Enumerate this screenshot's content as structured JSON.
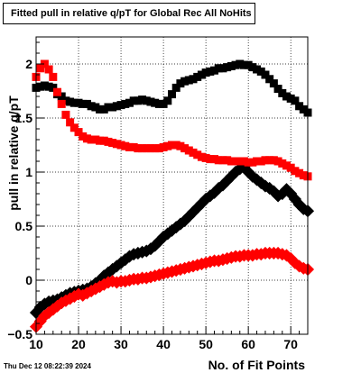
{
  "chart_data": {
    "type": "scatter",
    "title": "Fitted pull in relative q/pT for Global Rec All NoHits",
    "xlabel": "No. of Fit Points",
    "ylabel": "pull in relative q/pT",
    "xlim": [
      10,
      74
    ],
    "ylim": [
      -0.5,
      2.25
    ],
    "x_ticks": [
      10,
      20,
      30,
      40,
      50,
      60,
      70
    ],
    "y_ticks": [
      -0.5,
      0,
      0.5,
      1,
      1.5,
      2
    ],
    "y_tick_labels": [
      "−0.5",
      "0",
      "0.5",
      "1",
      "1.5",
      "2"
    ],
    "grid": true,
    "timestamp": "Thu Dec 12 08:22:39 2024",
    "series": [
      {
        "color": "#000000",
        "marker": "square",
        "x": [
          10,
          11,
          12,
          13,
          14,
          15,
          16,
          17,
          18,
          19,
          20,
          21,
          22,
          23,
          24,
          25,
          26,
          27,
          28,
          29,
          30,
          31,
          32,
          33,
          34,
          35,
          36,
          37,
          38,
          39,
          40,
          41,
          42,
          43,
          44,
          45,
          46,
          47,
          48,
          49,
          50,
          51,
          52,
          53,
          54,
          55,
          56,
          57,
          58,
          59,
          60,
          61,
          62,
          63,
          64,
          65,
          66,
          67,
          68,
          69,
          70,
          71,
          72,
          73,
          74
        ],
        "y": [
          1.78,
          1.79,
          1.8,
          1.79,
          1.78,
          1.72,
          1.7,
          1.66,
          1.65,
          1.64,
          1.64,
          1.63,
          1.63,
          1.61,
          1.6,
          1.58,
          1.58,
          1.6,
          1.6,
          1.61,
          1.62,
          1.63,
          1.64,
          1.66,
          1.66,
          1.67,
          1.66,
          1.65,
          1.64,
          1.63,
          1.63,
          1.66,
          1.72,
          1.78,
          1.82,
          1.84,
          1.85,
          1.86,
          1.88,
          1.9,
          1.92,
          1.93,
          1.94,
          1.96,
          1.96,
          1.97,
          1.98,
          1.99,
          2.0,
          1.99,
          1.99,
          1.97,
          1.95,
          1.93,
          1.9,
          1.86,
          1.82,
          1.77,
          1.73,
          1.7,
          1.68,
          1.66,
          1.61,
          1.58,
          1.55
        ]
      },
      {
        "color": "#000000",
        "marker": "diamond",
        "x": [
          10,
          11,
          12,
          13,
          14,
          15,
          16,
          17,
          18,
          19,
          20,
          21,
          22,
          23,
          24,
          25,
          26,
          27,
          28,
          29,
          30,
          31,
          32,
          33,
          34,
          35,
          36,
          37,
          38,
          39,
          40,
          41,
          42,
          43,
          44,
          45,
          46,
          47,
          48,
          49,
          50,
          51,
          52,
          53,
          54,
          55,
          56,
          57,
          58,
          59,
          60,
          61,
          62,
          63,
          64,
          65,
          66,
          67,
          68,
          69,
          70,
          71,
          72,
          73,
          74
        ],
        "y": [
          -0.3,
          -0.25,
          -0.22,
          -0.2,
          -0.19,
          -0.18,
          -0.16,
          -0.14,
          -0.12,
          -0.11,
          -0.1,
          -0.09,
          -0.08,
          -0.06,
          -0.03,
          0.0,
          0.04,
          0.07,
          0.1,
          0.13,
          0.16,
          0.19,
          0.22,
          0.24,
          0.25,
          0.26,
          0.27,
          0.29,
          0.32,
          0.36,
          0.4,
          0.43,
          0.46,
          0.49,
          0.52,
          0.55,
          0.59,
          0.63,
          0.67,
          0.71,
          0.75,
          0.78,
          0.81,
          0.85,
          0.88,
          0.92,
          0.96,
          1.0,
          1.03,
          1.05,
          1.0,
          0.96,
          0.93,
          0.9,
          0.87,
          0.85,
          0.82,
          0.78,
          0.8,
          0.84,
          0.8,
          0.75,
          0.7,
          0.66,
          0.64
        ]
      },
      {
        "color": "#ff0000",
        "marker": "square",
        "x": [
          10,
          11,
          12,
          13,
          14,
          15,
          16,
          17,
          18,
          19,
          20,
          21,
          22,
          23,
          24,
          25,
          26,
          27,
          28,
          29,
          30,
          31,
          32,
          33,
          34,
          35,
          36,
          37,
          38,
          39,
          40,
          41,
          42,
          43,
          44,
          45,
          46,
          47,
          48,
          49,
          50,
          51,
          52,
          53,
          54,
          55,
          56,
          57,
          58,
          59,
          60,
          61,
          62,
          63,
          64,
          65,
          66,
          67,
          68,
          69,
          70,
          71,
          72,
          73,
          74
        ],
        "y": [
          1.88,
          1.96,
          2.0,
          1.95,
          1.88,
          1.74,
          1.63,
          1.53,
          1.46,
          1.41,
          1.37,
          1.33,
          1.31,
          1.3,
          1.3,
          1.29,
          1.29,
          1.28,
          1.27,
          1.26,
          1.25,
          1.24,
          1.23,
          1.23,
          1.22,
          1.22,
          1.22,
          1.22,
          1.22,
          1.22,
          1.23,
          1.24,
          1.25,
          1.25,
          1.24,
          1.22,
          1.2,
          1.18,
          1.16,
          1.14,
          1.13,
          1.12,
          1.12,
          1.11,
          1.11,
          1.11,
          1.1,
          1.1,
          1.1,
          1.1,
          1.09,
          1.09,
          1.1,
          1.1,
          1.11,
          1.11,
          1.11,
          1.1,
          1.08,
          1.06,
          1.04,
          1.01,
          0.99,
          0.97,
          0.96
        ]
      },
      {
        "color": "#ff0000",
        "marker": "diamond",
        "x": [
          10,
          11,
          12,
          13,
          14,
          15,
          16,
          17,
          18,
          19,
          20,
          21,
          22,
          23,
          24,
          25,
          26,
          27,
          28,
          29,
          30,
          31,
          32,
          33,
          34,
          35,
          36,
          37,
          38,
          39,
          40,
          41,
          42,
          43,
          44,
          45,
          46,
          47,
          48,
          49,
          50,
          51,
          52,
          53,
          54,
          55,
          56,
          57,
          58,
          59,
          60,
          61,
          62,
          63,
          64,
          65,
          66,
          67,
          68,
          69,
          70,
          71,
          72,
          73,
          74
        ],
        "y": [
          -0.43,
          -0.38,
          -0.33,
          -0.3,
          -0.27,
          -0.24,
          -0.21,
          -0.19,
          -0.17,
          -0.15,
          -0.13,
          -0.14,
          -0.12,
          -0.1,
          -0.08,
          -0.06,
          -0.04,
          -0.02,
          -0.01,
          -0.02,
          -0.01,
          -0.01,
          0.0,
          0.01,
          0.01,
          0.02,
          0.02,
          0.03,
          0.04,
          0.05,
          0.06,
          0.07,
          0.08,
          0.09,
          0.1,
          0.11,
          0.12,
          0.13,
          0.14,
          0.15,
          0.16,
          0.17,
          0.18,
          0.18,
          0.19,
          0.2,
          0.21,
          0.22,
          0.22,
          0.23,
          0.23,
          0.23,
          0.24,
          0.24,
          0.25,
          0.25,
          0.25,
          0.25,
          0.24,
          0.23,
          0.2,
          0.16,
          0.13,
          0.11,
          0.1
        ]
      }
    ]
  }
}
